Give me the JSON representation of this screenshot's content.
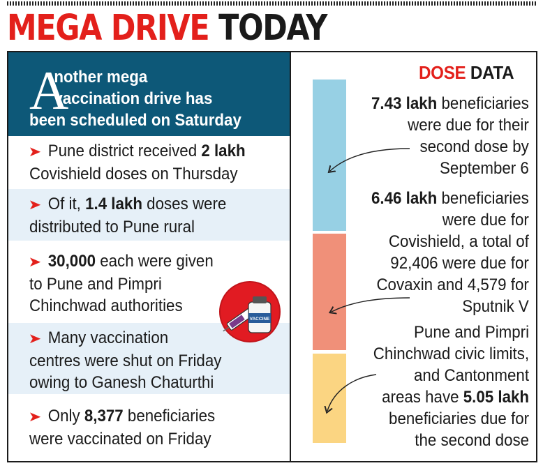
{
  "headline": {
    "red": "MEGA DRIVE",
    "black": "TODAY"
  },
  "intro": {
    "dropcap": "A",
    "line1": "nother mega",
    "line2": "vaccination drive has",
    "line3": "been scheduled on Saturday"
  },
  "items": [
    {
      "pre": "Pune district received ",
      "bold": "2 lakh",
      "post": "",
      "line2": "Covishield doses on Thursday",
      "line3": ""
    },
    {
      "pre": "Of it, ",
      "bold": "1.4 lakh",
      "post": " doses were",
      "line2": "distributed to Pune rural",
      "line3": ""
    },
    {
      "pre": "",
      "bold": "30,000",
      "post": " each were given",
      "line2": "to Pune and Pimpri",
      "line3": "Chinchwad authorities"
    },
    {
      "pre": "Many vaccination",
      "bold": "",
      "post": "",
      "line2": "centres were shut on Friday",
      "line3": "owing to Ganesh Chaturthi"
    },
    {
      "pre": "Only ",
      "bold": "8,377",
      "post": " beneficiaries",
      "line2": "were vaccinated on Friday",
      "line3": ""
    }
  ],
  "vial_label": "VACCINE",
  "dose_data": {
    "title_red": "DOSE",
    "title_black": " DATA",
    "p1": {
      "bold": "7.43 lakh",
      "rest": " beneficiaries",
      "line2": "were due for their",
      "line3": "second dose by",
      "line4": "September 6"
    },
    "p2": {
      "bold": "6.46 lakh",
      "rest": " beneficiaries",
      "line2": "were due for",
      "line3": "Covishield, a total of",
      "line4": "92,406 were due for",
      "line5": "Covaxin and 4,579 for",
      "line6": "Sputnik V"
    },
    "p3": {
      "line1": "Pune and Pimpri",
      "line2": "Chinchwad civic limits,",
      "line3": "and Cantonment",
      "line4_pre": "areas have ",
      "line4_bold": "5.05 lakh",
      "line5": "beneficiaries due for",
      "line6": "the second dose"
    }
  },
  "colors": {
    "accent_red": "#e3201b",
    "intro_blue": "#0d5878",
    "bar_blue": "#97d0e4",
    "bar_orange": "#f09079",
    "bar_yellow": "#fbd582",
    "row_shade": "#e6f0f8"
  }
}
